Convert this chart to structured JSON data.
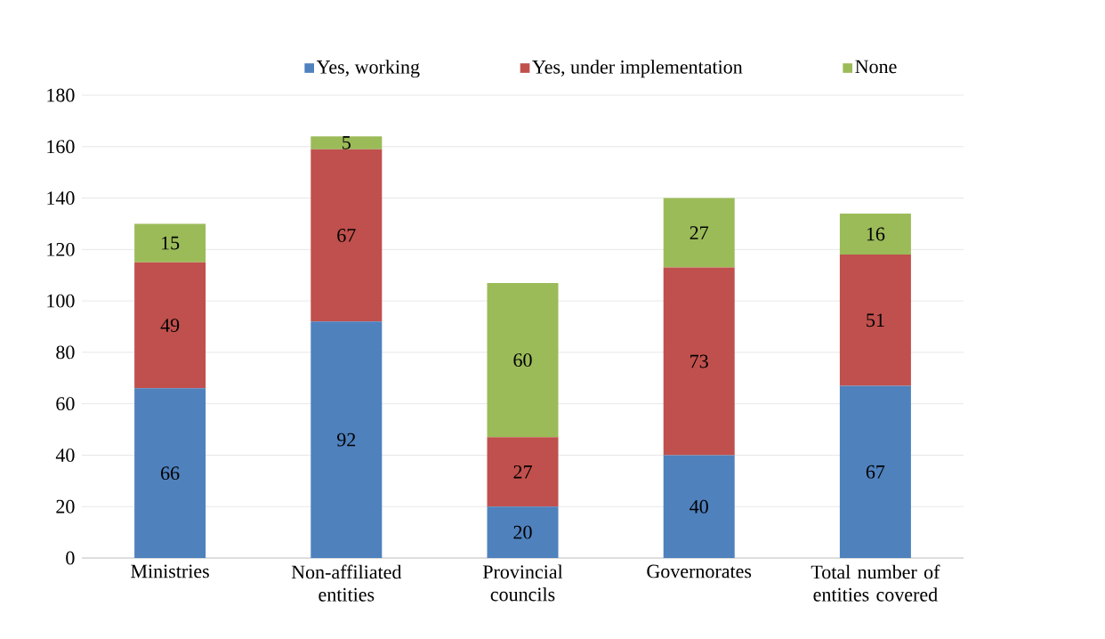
{
  "chart_data": {
    "type": "bar",
    "stacked": true,
    "categories": [
      "Ministries",
      "Non-affiliated entities",
      "Provincial councils",
      "Governorates",
      "Total number of entities covered"
    ],
    "series": [
      {
        "name": "Yes, working",
        "color": "#4f81bd",
        "values": [
          66,
          92,
          20,
          40,
          67
        ]
      },
      {
        "name": "Yes, under implementation",
        "color": "#c0504d",
        "values": [
          49,
          67,
          27,
          73,
          51
        ]
      },
      {
        "name": "None",
        "color": "#9bbb59",
        "values": [
          15,
          5,
          60,
          27,
          16
        ]
      }
    ],
    "ylim": [
      0,
      180
    ],
    "yticks": [
      0,
      20,
      40,
      60,
      80,
      100,
      120,
      140,
      160,
      180
    ],
    "grid": "y",
    "legend": "top",
    "data_labels": true
  }
}
